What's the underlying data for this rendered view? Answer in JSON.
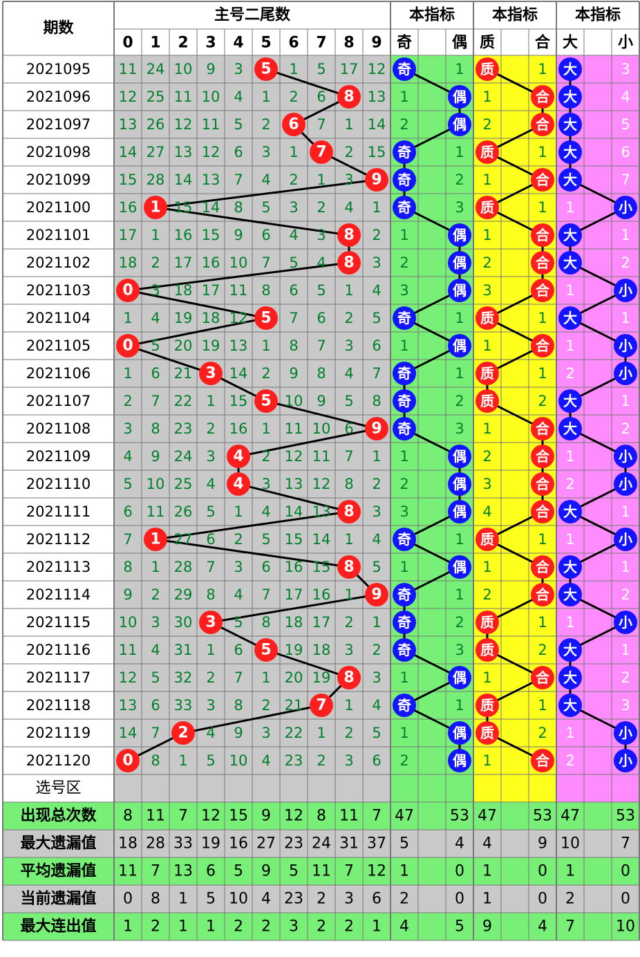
{
  "headers": {
    "period": "期数",
    "main": "主号二尾数",
    "ind_odd_even": "本指标",
    "ind_prime_comp": "本指标",
    "ind_big_small": "本指标",
    "digits": [
      "0",
      "1",
      "2",
      "3",
      "4",
      "5",
      "6",
      "7",
      "8",
      "9"
    ],
    "odd": "奇",
    "even": "偶",
    "prime": "质",
    "composite": "合",
    "big": "大",
    "small": "小"
  },
  "select_label": "选号区",
  "colors": {
    "grid_bg": "#c9c9c9",
    "green": "#78f078",
    "yellow": "#ffff1e",
    "pink": "#ff8cff",
    "digit_green": "#00802a",
    "red_ball": "#ff1e1e",
    "blue_ball": "#1414ff",
    "stat_green": "#78f078",
    "stat_gray": "#c9c9c9"
  },
  "chart_data": {
    "type": "table",
    "rows": [
      {
        "period": "2021095",
        "cells": [
          11,
          24,
          10,
          9,
          3,
          "5",
          1,
          5,
          17,
          12
        ],
        "oe": [
          "奇",
          1
        ],
        "pc": [
          "质",
          1
        ],
        "bs": [
          "大",
          3
        ]
      },
      {
        "period": "2021096",
        "cells": [
          12,
          25,
          11,
          10,
          4,
          1,
          2,
          6,
          "8",
          13
        ],
        "oe": [
          1,
          "偶"
        ],
        "pc": [
          1,
          "合"
        ],
        "bs": [
          "大",
          4
        ]
      },
      {
        "period": "2021097",
        "cells": [
          13,
          26,
          12,
          11,
          5,
          2,
          "6",
          7,
          1,
          14
        ],
        "oe": [
          2,
          "偶"
        ],
        "pc": [
          2,
          "合"
        ],
        "bs": [
          "大",
          5
        ]
      },
      {
        "period": "2021098",
        "cells": [
          14,
          27,
          13,
          12,
          6,
          3,
          1,
          "7",
          2,
          15
        ],
        "oe": [
          "奇",
          1
        ],
        "pc": [
          "质",
          1
        ],
        "bs": [
          "大",
          6
        ]
      },
      {
        "period": "2021099",
        "cells": [
          15,
          28,
          14,
          13,
          7,
          4,
          2,
          1,
          3,
          "9"
        ],
        "oe": [
          "奇",
          2
        ],
        "pc": [
          1,
          "合"
        ],
        "bs": [
          "大",
          7
        ]
      },
      {
        "period": "2021100",
        "cells": [
          16,
          "1",
          15,
          14,
          8,
          5,
          3,
          2,
          4,
          1
        ],
        "oe": [
          "奇",
          3
        ],
        "pc": [
          "质",
          1
        ],
        "bs": [
          1,
          "小"
        ]
      },
      {
        "period": "2021101",
        "cells": [
          17,
          1,
          16,
          15,
          9,
          6,
          4,
          3,
          "8",
          2
        ],
        "oe": [
          1,
          "偶"
        ],
        "pc": [
          1,
          "合"
        ],
        "bs": [
          "大",
          1
        ]
      },
      {
        "period": "2021102",
        "cells": [
          18,
          2,
          17,
          16,
          10,
          7,
          5,
          4,
          "8",
          3
        ],
        "oe": [
          2,
          "偶"
        ],
        "pc": [
          2,
          "合"
        ],
        "bs": [
          "大",
          2
        ]
      },
      {
        "period": "2021103",
        "cells": [
          "0",
          3,
          18,
          17,
          11,
          8,
          6,
          5,
          1,
          4
        ],
        "oe": [
          3,
          "偶"
        ],
        "pc": [
          3,
          "合"
        ],
        "bs": [
          1,
          "小"
        ]
      },
      {
        "period": "2021104",
        "cells": [
          1,
          4,
          19,
          18,
          12,
          "5",
          7,
          6,
          2,
          5
        ],
        "oe": [
          "奇",
          1
        ],
        "pc": [
          "质",
          1
        ],
        "bs": [
          "大",
          1
        ]
      },
      {
        "period": "2021105",
        "cells": [
          "0",
          5,
          20,
          19,
          13,
          1,
          8,
          7,
          3,
          6
        ],
        "oe": [
          1,
          "偶"
        ],
        "pc": [
          1,
          "合"
        ],
        "bs": [
          1,
          "小"
        ]
      },
      {
        "period": "2021106",
        "cells": [
          1,
          6,
          21,
          "3",
          14,
          2,
          9,
          8,
          4,
          7
        ],
        "oe": [
          "奇",
          1
        ],
        "pc": [
          "质",
          1
        ],
        "bs": [
          2,
          "小"
        ]
      },
      {
        "period": "2021107",
        "cells": [
          2,
          7,
          22,
          1,
          15,
          "5",
          10,
          9,
          5,
          8
        ],
        "oe": [
          "奇",
          2
        ],
        "pc": [
          "质",
          2
        ],
        "bs": [
          "大",
          1
        ]
      },
      {
        "period": "2021108",
        "cells": [
          3,
          8,
          23,
          2,
          16,
          1,
          11,
          10,
          6,
          "9"
        ],
        "oe": [
          "奇",
          3
        ],
        "pc": [
          1,
          "合"
        ],
        "bs": [
          "大",
          2
        ]
      },
      {
        "period": "2021109",
        "cells": [
          4,
          9,
          24,
          3,
          "4",
          2,
          12,
          11,
          7,
          1
        ],
        "oe": [
          1,
          "偶"
        ],
        "pc": [
          2,
          "合"
        ],
        "bs": [
          1,
          "小"
        ]
      },
      {
        "period": "2021110",
        "cells": [
          5,
          10,
          25,
          4,
          "4",
          3,
          13,
          12,
          8,
          2
        ],
        "oe": [
          2,
          "偶"
        ],
        "pc": [
          3,
          "合"
        ],
        "bs": [
          2,
          "小"
        ]
      },
      {
        "period": "2021111",
        "cells": [
          6,
          11,
          26,
          5,
          1,
          4,
          14,
          13,
          "8",
          3
        ],
        "oe": [
          3,
          "偶"
        ],
        "pc": [
          4,
          "合"
        ],
        "bs": [
          "大",
          1
        ]
      },
      {
        "period": "2021112",
        "cells": [
          7,
          "1",
          27,
          6,
          2,
          5,
          15,
          14,
          1,
          4
        ],
        "oe": [
          "奇",
          1
        ],
        "pc": [
          "质",
          1
        ],
        "bs": [
          1,
          "小"
        ]
      },
      {
        "period": "2021113",
        "cells": [
          8,
          1,
          28,
          7,
          3,
          6,
          16,
          15,
          "8",
          5
        ],
        "oe": [
          1,
          "偶"
        ],
        "pc": [
          1,
          "合"
        ],
        "bs": [
          "大",
          1
        ]
      },
      {
        "period": "2021114",
        "cells": [
          9,
          2,
          29,
          8,
          4,
          7,
          17,
          16,
          1,
          "9"
        ],
        "oe": [
          "奇",
          1
        ],
        "pc": [
          2,
          "合"
        ],
        "bs": [
          "大",
          2
        ]
      },
      {
        "period": "2021115",
        "cells": [
          10,
          3,
          30,
          "3",
          5,
          8,
          18,
          17,
          2,
          1
        ],
        "oe": [
          "奇",
          2
        ],
        "pc": [
          "质",
          1
        ],
        "bs": [
          1,
          "小"
        ]
      },
      {
        "period": "2021116",
        "cells": [
          11,
          4,
          31,
          1,
          6,
          "5",
          19,
          18,
          3,
          2
        ],
        "oe": [
          "奇",
          3
        ],
        "pc": [
          "质",
          2
        ],
        "bs": [
          "大",
          1
        ]
      },
      {
        "period": "2021117",
        "cells": [
          12,
          5,
          32,
          2,
          7,
          1,
          20,
          19,
          "8",
          3
        ],
        "oe": [
          1,
          "偶"
        ],
        "pc": [
          1,
          "合"
        ],
        "bs": [
          "大",
          2
        ]
      },
      {
        "period": "2021118",
        "cells": [
          13,
          6,
          33,
          3,
          8,
          2,
          21,
          "7",
          1,
          4
        ],
        "oe": [
          "奇",
          1
        ],
        "pc": [
          "质",
          1
        ],
        "bs": [
          "大",
          3
        ]
      },
      {
        "period": "2021119",
        "cells": [
          14,
          7,
          "2",
          4,
          9,
          3,
          22,
          1,
          2,
          5
        ],
        "oe": [
          1,
          "偶"
        ],
        "pc": [
          "质",
          2
        ],
        "bs": [
          1,
          "小"
        ]
      },
      {
        "period": "2021120",
        "cells": [
          "0",
          8,
          1,
          5,
          10,
          4,
          23,
          2,
          3,
          6
        ],
        "oe": [
          2,
          "偶"
        ],
        "pc": [
          1,
          "合"
        ],
        "bs": [
          2,
          "小"
        ]
      }
    ],
    "stats": [
      {
        "label": "出现总次数",
        "values": [
          8,
          11,
          7,
          12,
          15,
          9,
          12,
          8,
          11,
          7
        ],
        "oe": [
          47,
          53
        ],
        "pc": [
          47,
          53
        ],
        "bs": [
          47,
          53
        ]
      },
      {
        "label": "最大遗漏值",
        "values": [
          18,
          28,
          33,
          19,
          16,
          27,
          23,
          24,
          31,
          37
        ],
        "oe": [
          5,
          4
        ],
        "pc": [
          4,
          9
        ],
        "bs": [
          10,
          7
        ]
      },
      {
        "label": "平均遗漏值",
        "values": [
          11,
          7,
          13,
          6,
          5,
          9,
          5,
          11,
          7,
          12
        ],
        "oe": [
          1,
          0
        ],
        "pc": [
          1,
          0
        ],
        "bs": [
          1,
          0
        ]
      },
      {
        "label": "当前遗漏值",
        "values": [
          0,
          8,
          1,
          5,
          10,
          4,
          23,
          2,
          3,
          6
        ],
        "oe": [
          2,
          0
        ],
        "pc": [
          1,
          0
        ],
        "bs": [
          2,
          0
        ]
      },
      {
        "label": "最大连出值",
        "values": [
          1,
          2,
          1,
          1,
          2,
          2,
          3,
          2,
          2,
          1
        ],
        "oe": [
          4,
          5
        ],
        "pc": [
          9,
          4
        ],
        "bs": [
          7,
          10
        ]
      }
    ]
  }
}
